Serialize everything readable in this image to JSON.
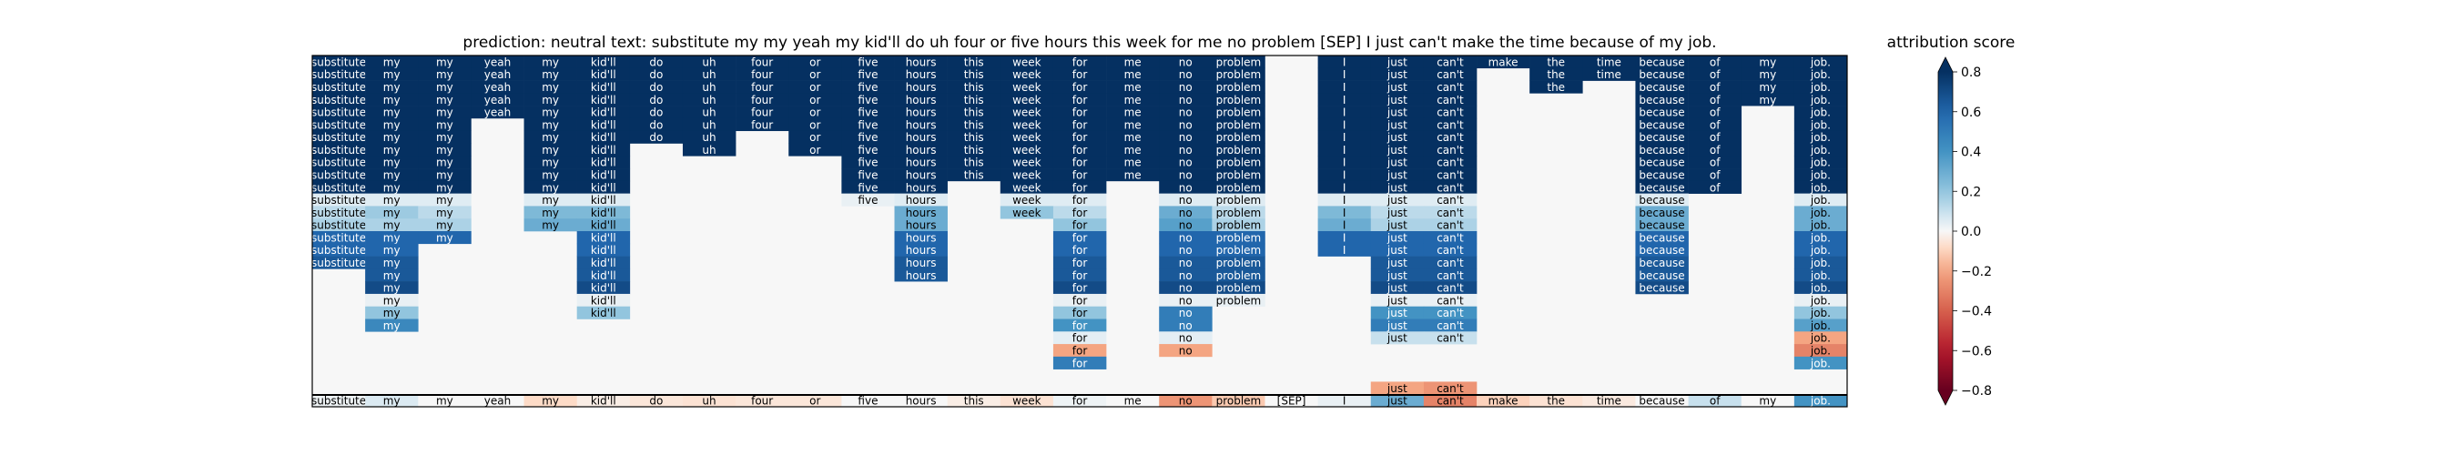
{
  "chart_data": {
    "type": "heatmap",
    "title": "prediction:  neutral      text:  substitute my my yeah my kid'll do uh four or five hours this week for me no problem [SEP] I just can't make the time because of my job.",
    "tokens": [
      "substitute",
      "my",
      "my",
      "yeah",
      "my",
      "kid'll",
      "do",
      "uh",
      "four",
      "or",
      "five",
      "hours",
      "this",
      "week",
      "for",
      "me",
      "no",
      "problem",
      "[SEP]",
      "I",
      "just",
      "can't",
      "make",
      "the",
      "time",
      "because",
      "of",
      "my",
      "job."
    ],
    "color_scale": {
      "label": "attribution score",
      "min": -0.8,
      "max": 0.8,
      "ticks": [
        0.8,
        0.6,
        0.4,
        0.2,
        0.0,
        -0.2,
        -0.4,
        -0.6,
        -0.8
      ],
      "tick_labels": [
        "0.8",
        "0.6",
        "0.4",
        "0.2",
        "0.0",
        "−0.2",
        "−0.4",
        "−0.6",
        "−0.8"
      ],
      "colormap": "RdBu",
      "extend": "both"
    },
    "rows": [
      {
        "tokens": [
          0,
          1,
          2,
          3,
          4,
          5,
          6,
          7,
          8,
          9,
          10,
          11,
          12,
          13,
          14,
          15,
          16,
          17,
          19,
          20,
          21,
          22,
          23,
          24,
          25,
          26,
          27,
          28
        ],
        "values": [
          0.9,
          0.9,
          0.9,
          0.9,
          0.9,
          0.9,
          0.9,
          0.9,
          0.9,
          0.9,
          0.9,
          0.9,
          0.9,
          0.9,
          0.9,
          0.9,
          0.9,
          0.9,
          0.9,
          0.9,
          0.9,
          0.9,
          0.9,
          0.9,
          0.9,
          0.9,
          0.9,
          0.9
        ]
      },
      {
        "tokens": [
          0,
          1,
          2,
          3,
          4,
          5,
          6,
          7,
          8,
          9,
          10,
          11,
          12,
          13,
          14,
          15,
          16,
          17,
          19,
          20,
          21,
          23,
          24,
          25,
          26,
          27,
          28
        ],
        "values": [
          0.9,
          0.9,
          0.9,
          0.9,
          0.9,
          0.9,
          0.9,
          0.9,
          0.9,
          0.9,
          0.9,
          0.9,
          0.9,
          0.9,
          0.9,
          0.9,
          0.9,
          0.9,
          0.9,
          0.9,
          0.9,
          0.9,
          0.9,
          0.9,
          0.9,
          0.9,
          0.9
        ]
      },
      {
        "tokens": [
          0,
          1,
          2,
          3,
          4,
          5,
          6,
          7,
          8,
          9,
          10,
          11,
          12,
          13,
          14,
          15,
          16,
          17,
          19,
          20,
          21,
          23,
          25,
          26,
          27,
          28
        ],
        "values": [
          0.9,
          0.9,
          0.9,
          0.9,
          0.9,
          0.9,
          0.9,
          0.9,
          0.9,
          0.9,
          0.9,
          0.9,
          0.9,
          0.9,
          0.9,
          0.9,
          0.9,
          0.9,
          0.9,
          0.9,
          0.9,
          0.9,
          0.9,
          0.9,
          0.9,
          0.9
        ]
      },
      {
        "tokens": [
          0,
          1,
          2,
          3,
          4,
          5,
          6,
          7,
          8,
          9,
          10,
          11,
          12,
          13,
          14,
          15,
          16,
          17,
          19,
          20,
          21,
          25,
          26,
          27,
          28
        ],
        "values": [
          0.9,
          0.9,
          0.9,
          0.9,
          0.9,
          0.9,
          0.9,
          0.9,
          0.9,
          0.9,
          0.9,
          0.9,
          0.9,
          0.9,
          0.9,
          0.9,
          0.9,
          0.9,
          0.9,
          0.9,
          0.9,
          0.9,
          0.9,
          0.9,
          0.9
        ]
      },
      {
        "tokens": [
          0,
          1,
          2,
          3,
          4,
          5,
          6,
          7,
          8,
          9,
          10,
          11,
          12,
          13,
          14,
          15,
          16,
          17,
          19,
          20,
          21,
          25,
          26,
          28
        ],
        "values": [
          0.9,
          0.9,
          0.9,
          0.9,
          0.9,
          0.9,
          0.9,
          0.9,
          0.9,
          0.9,
          0.9,
          0.9,
          0.9,
          0.9,
          0.9,
          0.9,
          0.9,
          0.9,
          0.9,
          0.9,
          0.9,
          0.9,
          0.9,
          0.9
        ]
      },
      {
        "tokens": [
          0,
          1,
          2,
          4,
          5,
          6,
          7,
          8,
          9,
          10,
          11,
          12,
          13,
          14,
          15,
          16,
          17,
          19,
          20,
          21,
          25,
          26,
          28
        ],
        "values": [
          0.9,
          0.9,
          0.9,
          0.9,
          0.9,
          0.9,
          0.9,
          0.9,
          0.9,
          0.9,
          0.9,
          0.9,
          0.9,
          0.9,
          0.9,
          0.9,
          0.9,
          0.9,
          0.9,
          0.9,
          0.9,
          0.9,
          0.9
        ]
      },
      {
        "tokens": [
          0,
          1,
          2,
          4,
          5,
          6,
          7,
          9,
          10,
          11,
          12,
          13,
          14,
          15,
          16,
          17,
          19,
          20,
          21,
          25,
          26,
          28
        ],
        "values": [
          0.9,
          0.9,
          0.9,
          0.9,
          0.9,
          0.9,
          0.9,
          0.9,
          0.9,
          0.9,
          0.9,
          0.9,
          0.9,
          0.9,
          0.9,
          0.9,
          0.9,
          0.9,
          0.9,
          0.9,
          0.9,
          0.9
        ]
      },
      {
        "tokens": [
          0,
          1,
          2,
          4,
          5,
          7,
          9,
          10,
          11,
          12,
          13,
          14,
          15,
          16,
          17,
          19,
          20,
          21,
          25,
          26,
          28
        ],
        "values": [
          0.9,
          0.9,
          0.9,
          0.9,
          0.9,
          0.9,
          0.9,
          0.9,
          0.9,
          0.9,
          0.9,
          0.9,
          0.9,
          0.9,
          0.9,
          0.9,
          0.9,
          0.9,
          0.9,
          0.9,
          0.9
        ]
      },
      {
        "tokens": [
          0,
          1,
          2,
          4,
          5,
          10,
          11,
          12,
          13,
          14,
          15,
          16,
          17,
          19,
          20,
          21,
          25,
          26,
          28
        ],
        "values": [
          0.9,
          0.9,
          0.9,
          0.9,
          0.9,
          0.9,
          0.9,
          0.9,
          0.9,
          0.9,
          0.9,
          0.9,
          0.9,
          0.9,
          0.9,
          0.9,
          0.9,
          0.9,
          0.9
        ]
      },
      {
        "tokens": [
          0,
          1,
          2,
          4,
          5,
          10,
          11,
          12,
          13,
          14,
          15,
          16,
          17,
          19,
          20,
          21,
          25,
          26,
          28
        ],
        "values": [
          0.9,
          0.9,
          0.9,
          0.9,
          0.9,
          0.9,
          0.9,
          0.9,
          0.9,
          0.9,
          0.9,
          0.9,
          0.9,
          0.9,
          0.9,
          0.9,
          0.9,
          0.9,
          0.9
        ]
      },
      {
        "tokens": [
          0,
          1,
          2,
          4,
          5,
          10,
          11,
          13,
          14,
          16,
          17,
          19,
          20,
          21,
          25,
          26,
          28
        ],
        "values": [
          0.9,
          0.9,
          0.9,
          0.9,
          0.9,
          0.9,
          0.9,
          0.9,
          0.9,
          0.9,
          0.9,
          0.9,
          0.9,
          0.9,
          0.9,
          0.9,
          0.9
        ]
      },
      {
        "tokens": [
          0,
          1,
          2,
          4,
          5,
          10,
          11,
          13,
          14,
          16,
          17,
          19,
          20,
          21,
          25,
          28
        ],
        "values": [
          0.05,
          0.05,
          0.05,
          0.05,
          0.05,
          0.03,
          0.05,
          0.05,
          0.05,
          0.05,
          0.05,
          0.05,
          0.05,
          0.05,
          0.05,
          0.05
        ]
      },
      {
        "tokens": [
          0,
          1,
          2,
          4,
          5,
          11,
          13,
          14,
          16,
          17,
          19,
          20,
          21,
          25,
          28
        ],
        "values": [
          0.12,
          0.18,
          0.12,
          0.25,
          0.25,
          0.3,
          0.2,
          0.12,
          0.3,
          0.12,
          0.25,
          0.12,
          0.12,
          0.3,
          0.3
        ]
      },
      {
        "tokens": [
          0,
          1,
          2,
          4,
          5,
          11,
          14,
          16,
          17,
          19,
          20,
          21,
          25,
          28
        ],
        "values": [
          0.15,
          0.15,
          0.15,
          0.3,
          0.3,
          0.3,
          0.2,
          0.35,
          0.15,
          0.3,
          0.15,
          0.15,
          0.3,
          0.3
        ]
      },
      {
        "tokens": [
          0,
          1,
          2,
          5,
          11,
          14,
          16,
          17,
          19,
          20,
          21,
          25,
          28
        ],
        "values": [
          0.6,
          0.6,
          0.6,
          0.6,
          0.6,
          0.6,
          0.6,
          0.6,
          0.6,
          0.6,
          0.6,
          0.6,
          0.6
        ]
      },
      {
        "tokens": [
          0,
          1,
          5,
          11,
          14,
          16,
          17,
          19,
          20,
          21,
          25,
          28
        ],
        "values": [
          0.6,
          0.6,
          0.6,
          0.6,
          0.6,
          0.6,
          0.6,
          0.6,
          0.6,
          0.6,
          0.6,
          0.6
        ]
      },
      {
        "tokens": [
          0,
          1,
          5,
          11,
          14,
          16,
          17,
          20,
          21,
          25,
          28
        ],
        "values": [
          0.65,
          0.65,
          0.65,
          0.65,
          0.65,
          0.65,
          0.65,
          0.65,
          0.65,
          0.65,
          0.65
        ]
      },
      {
        "tokens": [
          1,
          5,
          11,
          14,
          16,
          17,
          20,
          21,
          25,
          28
        ],
        "values": [
          0.65,
          0.65,
          0.65,
          0.65,
          0.65,
          0.65,
          0.65,
          0.65,
          0.65,
          0.65
        ]
      },
      {
        "tokens": [
          1,
          5,
          14,
          16,
          17,
          20,
          21,
          25,
          28
        ],
        "values": [
          0.7,
          0.7,
          0.7,
          0.7,
          0.7,
          0.7,
          0.7,
          0.7,
          0.7
        ]
      },
      {
        "tokens": [
          1,
          5,
          14,
          16,
          17,
          20,
          21,
          28
        ],
        "values": [
          0.03,
          0.03,
          0.03,
          0.03,
          0.03,
          0.03,
          0.03,
          0.03
        ]
      },
      {
        "tokens": [
          1,
          5,
          14,
          16,
          20,
          21,
          28
        ],
        "values": [
          0.2,
          0.2,
          0.2,
          0.5,
          0.4,
          0.4,
          0.2
        ]
      },
      {
        "tokens": [
          1,
          14,
          16,
          20,
          21,
          28
        ],
        "values": [
          0.45,
          0.4,
          0.5,
          0.5,
          0.5,
          0.35
        ]
      },
      {
        "tokens": [
          14,
          16,
          20,
          21,
          28
        ],
        "values": [
          0.04,
          0.04,
          0.1,
          0.1,
          -0.2
        ]
      },
      {
        "tokens": [
          14,
          16,
          28
        ],
        "values": [
          -0.2,
          -0.2,
          -0.3
        ]
      },
      {
        "tokens": [
          14,
          28
        ],
        "values": [
          0.5,
          0.4
        ]
      },
      {
        "tokens": [],
        "values": []
      },
      {
        "tokens": [
          20,
          21
        ],
        "values": [
          -0.2,
          -0.25
        ]
      },
      {
        "tokens": [
          0,
          1,
          2,
          3,
          4,
          5,
          6,
          7,
          8,
          9,
          10,
          11,
          12,
          13,
          14,
          15,
          16,
          17,
          18,
          19,
          20,
          21,
          22,
          23,
          24,
          25,
          26,
          27,
          28
        ],
        "values": [
          0.02,
          0.06,
          0.0,
          0.0,
          -0.08,
          -0.03,
          -0.05,
          -0.06,
          -0.05,
          -0.05,
          0.0,
          0.0,
          -0.03,
          -0.06,
          0.02,
          0.0,
          -0.25,
          -0.12,
          0.0,
          0.03,
          0.3,
          -0.3,
          -0.1,
          -0.06,
          -0.04,
          0.0,
          0.1,
          0.0,
          0.4
        ]
      }
    ]
  }
}
